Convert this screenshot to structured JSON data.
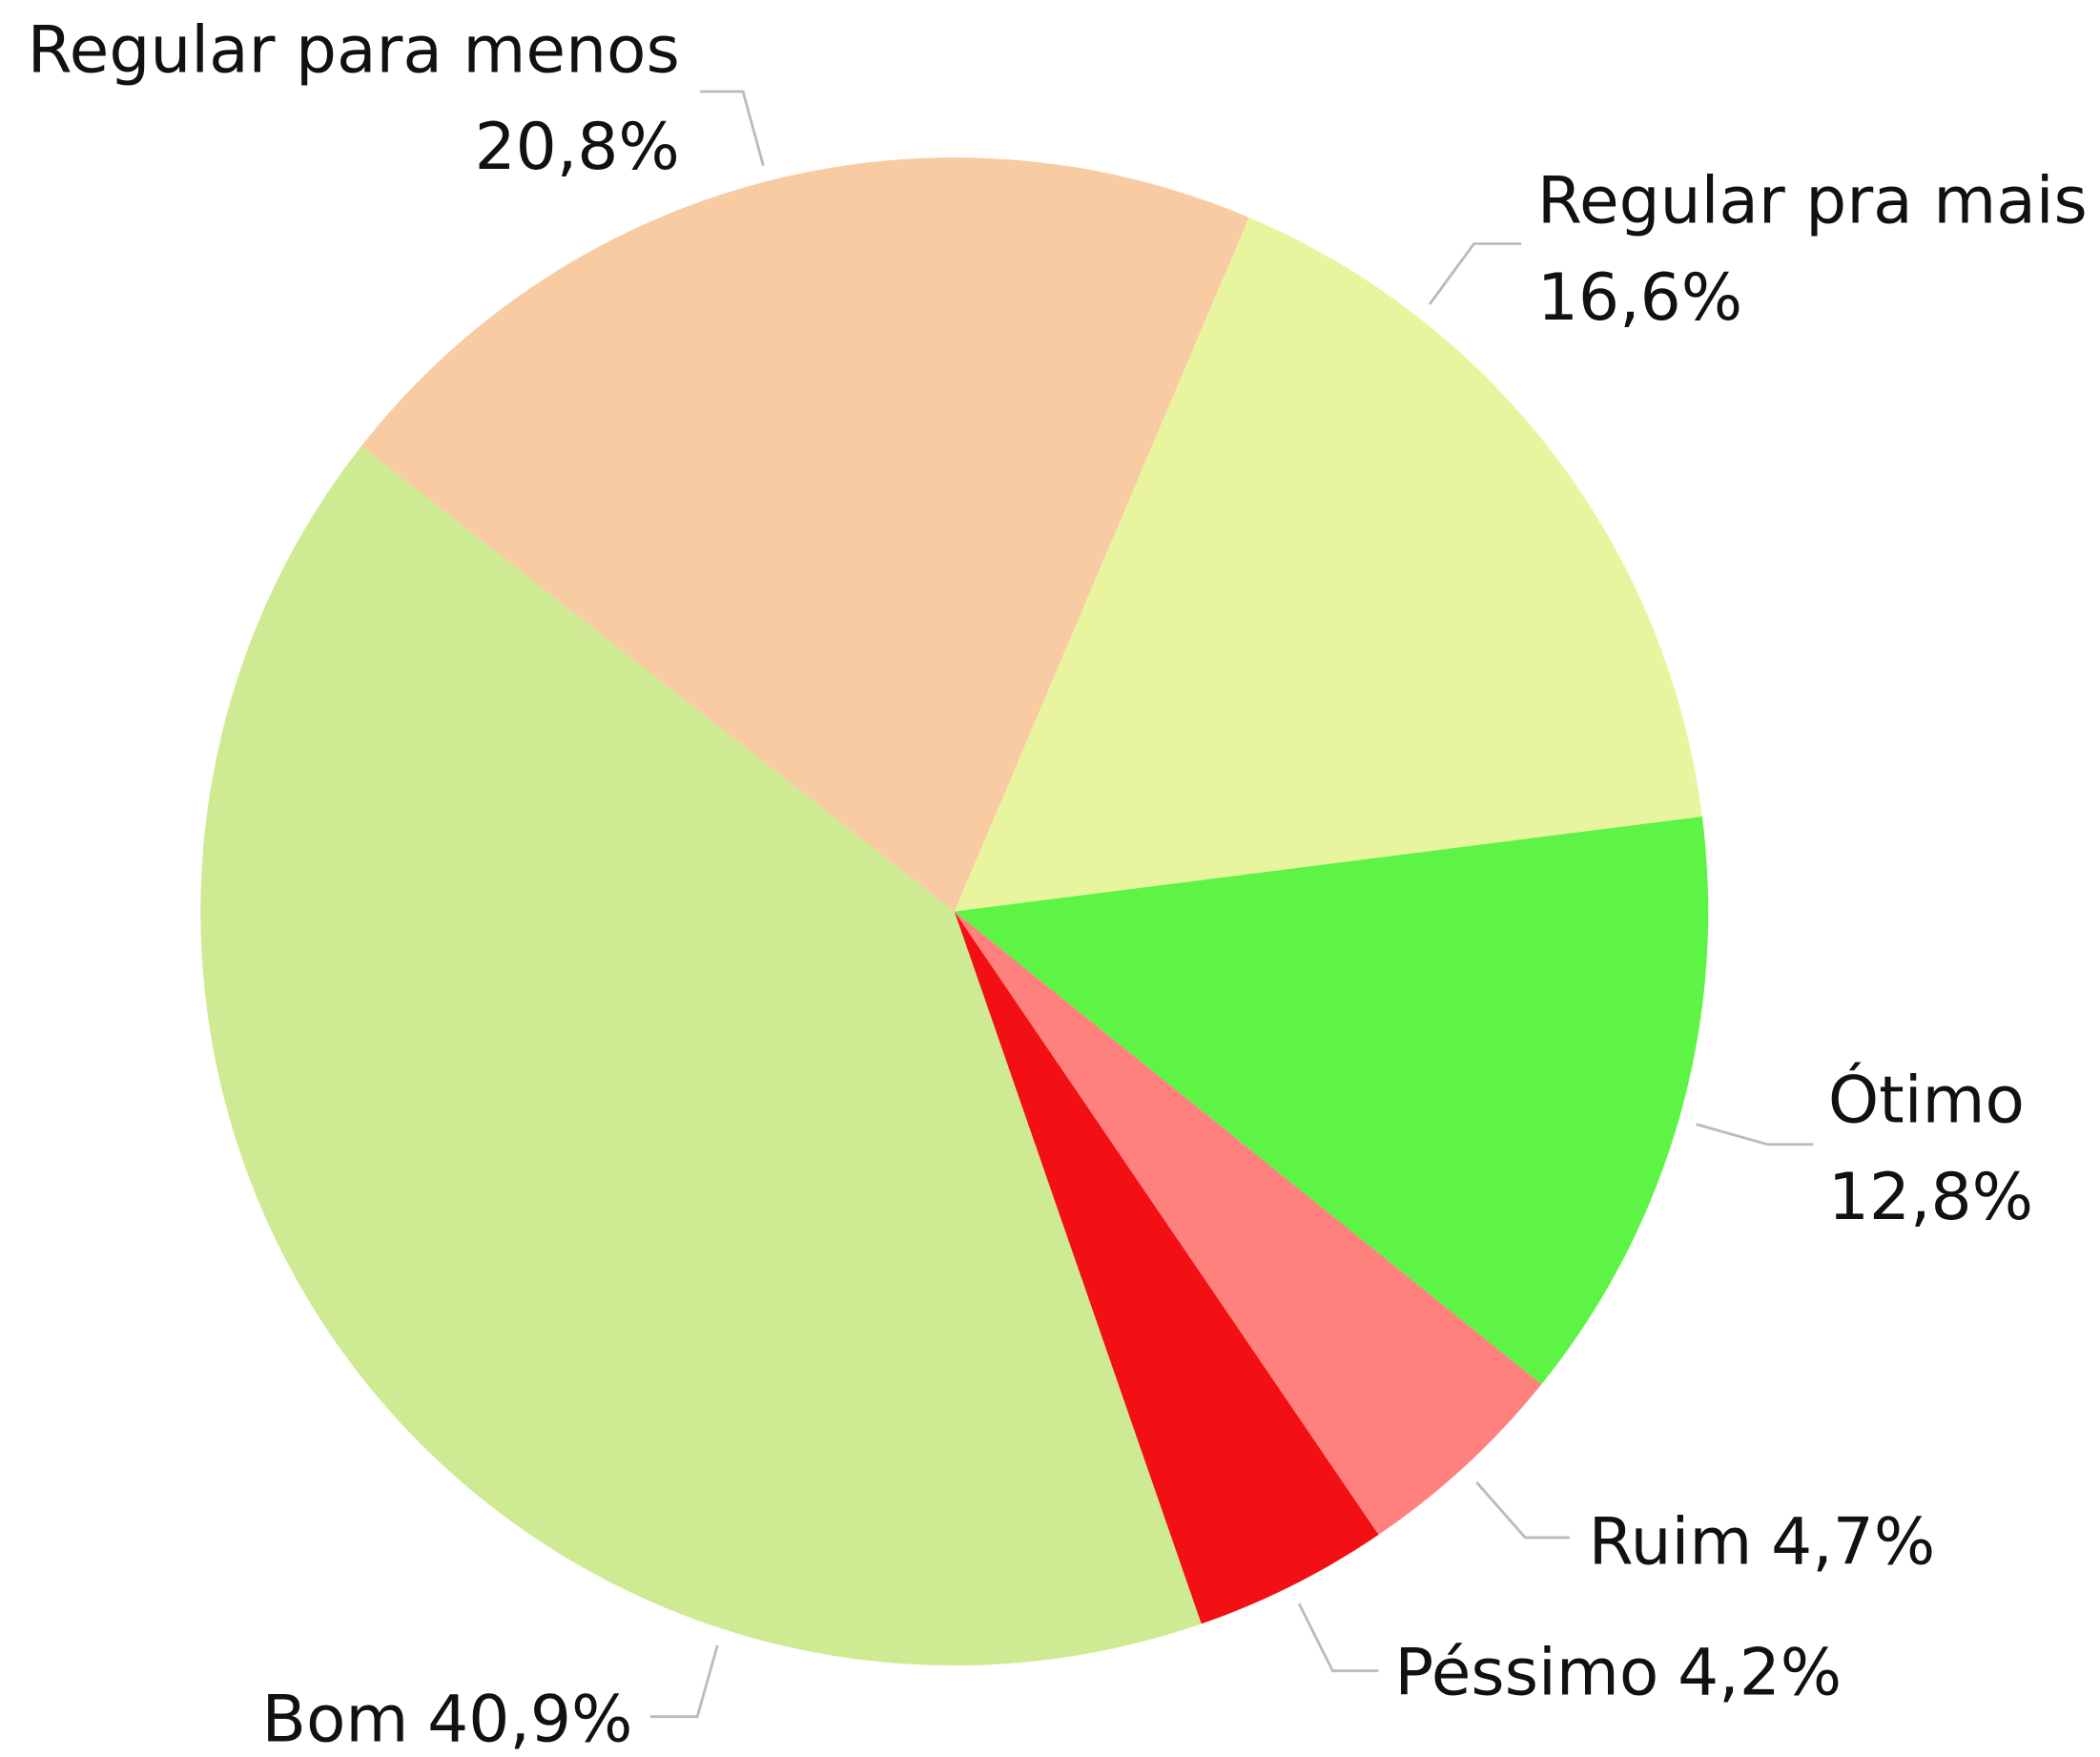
{
  "chart_data": {
    "type": "pie",
    "categories": [
      "Regular pra mais",
      "Ótimo",
      "Ruim",
      "Péssimo",
      "Bom",
      "Regular para menos"
    ],
    "values": [
      16.6,
      12.8,
      4.7,
      4.2,
      40.9,
      20.8
    ],
    "value_labels": [
      "16,6%",
      "12,8%",
      "4,7%",
      "4,2%",
      "40,9%",
      "20,8%"
    ],
    "colors": [
      "#e8f59e",
      "#5ef445",
      "#fe817e",
      "#f21014",
      "#ceea92",
      "#f8cba2"
    ]
  }
}
